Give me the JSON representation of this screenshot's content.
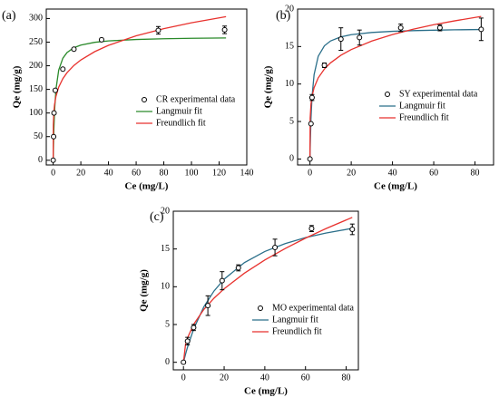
{
  "chart_data": [
    {
      "type": "scatter",
      "label": "(a)",
      "x_label": "Ce (mg/L)",
      "y_label": "Qe (mg/g)",
      "xlim": [
        -5,
        140
      ],
      "xticks": [
        0,
        20,
        40,
        60,
        80,
        100,
        120,
        140
      ],
      "ylim": [
        -10,
        320
      ],
      "yticks": [
        0,
        50,
        100,
        150,
        200,
        250,
        300
      ],
      "series": [
        {
          "name": "CR experimental data",
          "color": "#000000",
          "x": [
            0,
            0.3,
            0.6,
            1.5,
            7,
            15,
            35,
            76,
            124
          ],
          "values": [
            0,
            50,
            100,
            148,
            193,
            235,
            255,
            275,
            276
          ],
          "errors": [
            null,
            null,
            null,
            null,
            null,
            null,
            3,
            8,
            8
          ]
        },
        {
          "name": "Langmuir fit",
          "color": "#2a8a2a",
          "line": true,
          "x": [
            0,
            0.1,
            0.5,
            1,
            2,
            4,
            7,
            10,
            15,
            20,
            30,
            40,
            60,
            80,
            100,
            125
          ],
          "values": [
            0,
            16.5,
            65.7,
            105.1,
            150.0,
            190.8,
            216.0,
            228.0,
            238.3,
            243.8,
            249.6,
            252.6,
            255.6,
            257.2,
            258.1,
            258.9
          ]
        },
        {
          "name": "Freundlich fit",
          "color": "#e8322e",
          "line": true,
          "x": [
            0,
            0.1,
            0.5,
            1,
            2,
            4,
            7,
            10,
            15,
            20,
            30,
            40,
            60,
            80,
            100,
            125
          ],
          "values": [
            0,
            75.2,
            103.0,
            118.0,
            135.2,
            154.8,
            172.8,
            185.3,
            200.6,
            212.3,
            229.8,
            243.2,
            263.3,
            278.6,
            291.0,
            304.0
          ]
        }
      ]
    },
    {
      "type": "scatter",
      "label": "(b)",
      "x_label": "Ce (mg/L)",
      "y_label": "Qe (mg/g)",
      "xlim": [
        -6,
        89
      ],
      "xticks": [
        0,
        20,
        40,
        60,
        80
      ],
      "ylim": [
        -0.8,
        20
      ],
      "yticks": [
        0,
        5,
        10,
        15,
        20
      ],
      "series": [
        {
          "name": "SY experimental data",
          "color": "#000000",
          "x": [
            0,
            0.5,
            1,
            7,
            15,
            24,
            44,
            63,
            83
          ],
          "values": [
            0,
            4.7,
            8.2,
            12.5,
            16,
            16.2,
            17.5,
            17.5,
            17.3
          ],
          "errors": [
            null,
            null,
            0.4,
            0.3,
            1.5,
            1,
            0.5,
            0.4,
            1.5
          ]
        },
        {
          "name": "Langmuir fit",
          "color": "#2b6f8a",
          "line": true,
          "x": [
            0,
            0.1,
            0.5,
            1,
            2,
            4,
            7,
            10,
            15,
            20,
            30,
            40,
            50,
            60,
            70,
            83
          ],
          "values": [
            0,
            1.45,
            5.43,
            8.29,
            11.25,
            13.7,
            15.1,
            15.75,
            16.29,
            16.58,
            16.88,
            17.03,
            17.12,
            17.18,
            17.23,
            17.27
          ]
        },
        {
          "name": "Freundlich fit",
          "color": "#e8322e",
          "line": true,
          "x": [
            0,
            0.1,
            0.5,
            1,
            2,
            4,
            7,
            10,
            15,
            20,
            30,
            40,
            50,
            60,
            70,
            83
          ],
          "values": [
            0,
            5.45,
            7.35,
            8.36,
            9.51,
            10.82,
            12.0,
            12.83,
            13.84,
            14.6,
            15.74,
            16.6,
            17.31,
            17.91,
            18.42,
            19.02
          ]
        }
      ]
    },
    {
      "type": "scatter",
      "label": "(c)",
      "x_label": "Ce (mg/L)",
      "y_label": "Qe (mg/g)",
      "xlim": [
        -5,
        86
      ],
      "xticks": [
        0,
        20,
        40,
        60,
        80
      ],
      "ylim": [
        -1,
        20
      ],
      "yticks": [
        0,
        5,
        10,
        15,
        20
      ],
      "series": [
        {
          "name": "MO experimental data",
          "color": "#000000",
          "x": [
            0,
            2,
            5,
            12,
            19,
            27,
            45,
            63,
            83
          ],
          "values": [
            0,
            2.8,
            4.6,
            7.5,
            10.8,
            12.5,
            15.2,
            17.7,
            17.6
          ],
          "errors": [
            null,
            0.5,
            0.4,
            1.3,
            1.2,
            0.4,
            1.1,
            0.4,
            0.7
          ]
        },
        {
          "name": "Langmuir fit",
          "color": "#2b6f8a",
          "line": true,
          "x": [
            0,
            1,
            2,
            5,
            10,
            15,
            20,
            30,
            40,
            50,
            60,
            70,
            83
          ],
          "values": [
            0,
            1.05,
            2.0,
            4.4,
            7.33,
            9.43,
            11.0,
            13.2,
            14.67,
            15.71,
            16.5,
            17.11,
            17.73
          ]
        },
        {
          "name": "Freundlich fit",
          "color": "#e8322e",
          "line": true,
          "x": [
            0,
            1,
            2,
            5,
            10,
            15,
            20,
            30,
            40,
            50,
            60,
            70,
            83
          ],
          "values": [
            0,
            2.33,
            3.24,
            5.02,
            6.99,
            8.48,
            9.73,
            11.8,
            13.54,
            15.06,
            16.43,
            17.69,
            19.18
          ]
        }
      ]
    }
  ]
}
